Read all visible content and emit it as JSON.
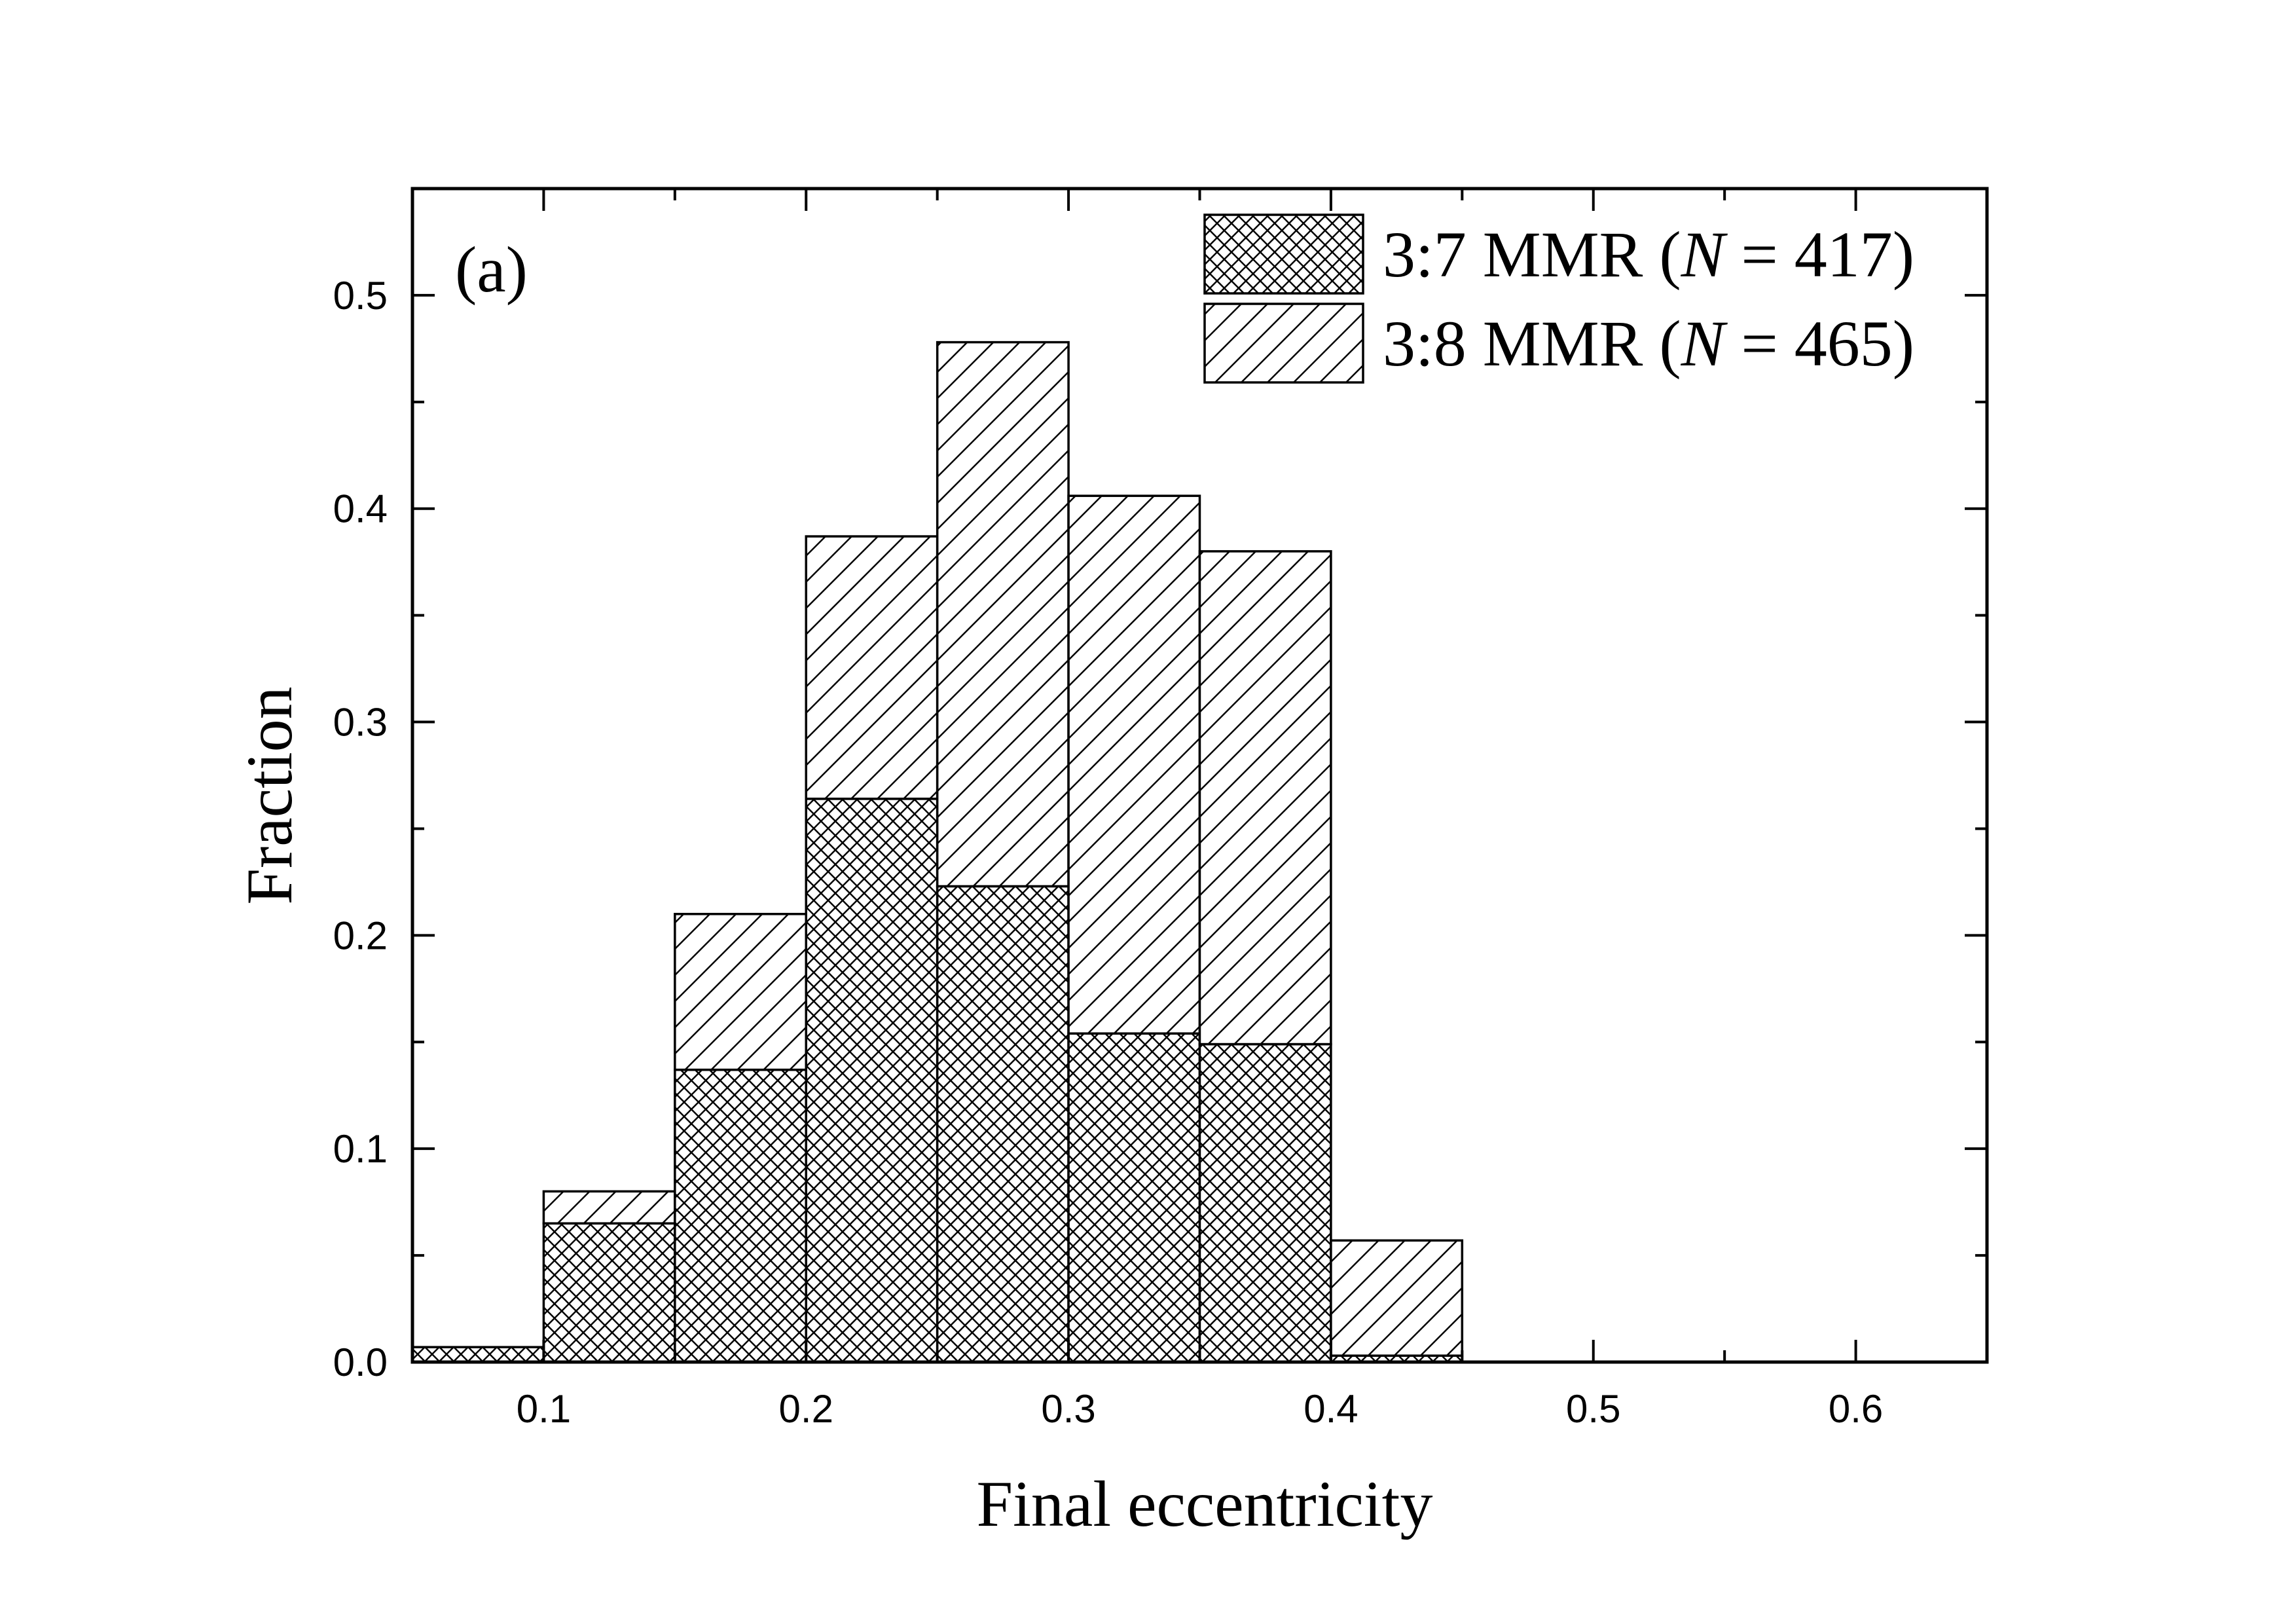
{
  "chart_data": {
    "type": "bar",
    "stacked": true,
    "panel_label": "(a)",
    "xlabel": "Final eccentricity",
    "ylabel": "Fraction",
    "xlim": [
      0.05,
      0.65
    ],
    "ylim": [
      0.0,
      0.55
    ],
    "xticks": [
      0.1,
      0.2,
      0.3,
      0.4,
      0.5,
      0.6
    ],
    "xtick_labels": [
      "0.1",
      "0.2",
      "0.3",
      "0.4",
      "0.5",
      "0.6"
    ],
    "yticks": [
      0.0,
      0.1,
      0.2,
      0.3,
      0.4,
      0.5
    ],
    "ytick_labels": [
      "0.0",
      "0.1",
      "0.2",
      "0.3",
      "0.4",
      "0.5"
    ],
    "bin_edges": [
      0.05,
      0.1,
      0.15,
      0.2,
      0.25,
      0.3,
      0.35,
      0.4,
      0.45
    ],
    "series": [
      {
        "name": "3:7 MMR (N = 417)",
        "legend_prefix": "3:7 MMR (",
        "legend_italic": "N",
        "legend_suffix": " = 417)",
        "pattern": "crosshatch",
        "values": [
          0.007,
          0.065,
          0.137,
          0.264,
          0.223,
          0.154,
          0.149,
          0.003
        ]
      },
      {
        "name": "3:8 MMR (N = 465)",
        "legend_prefix": "3:8 MMR (",
        "legend_italic": "N",
        "legend_suffix": " = 465)",
        "pattern": "diagonal",
        "values": [
          0.0,
          0.015,
          0.073,
          0.123,
          0.255,
          0.252,
          0.231,
          0.054
        ]
      }
    ],
    "legend_position": "top-right",
    "grid": false,
    "colors": {
      "stroke": "#000000",
      "background": "#ffffff"
    }
  }
}
